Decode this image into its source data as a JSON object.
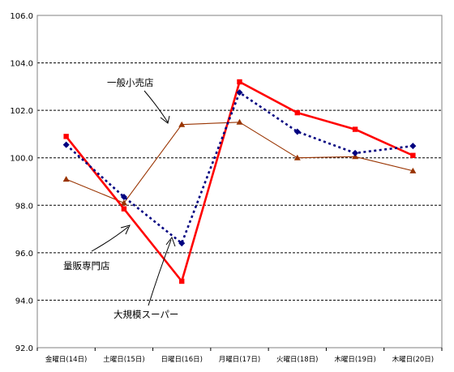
{
  "chart_data": {
    "type": "line",
    "title": "",
    "xlabel": "",
    "ylabel": "",
    "ylim": [
      92.0,
      106.0
    ],
    "yticks": [
      "92.0",
      "94.0",
      "96.0",
      "98.0",
      "100.0",
      "102.0",
      "104.0",
      "106.0"
    ],
    "grid": "horizontal-dashed",
    "categories": [
      "金曜日(14日)",
      "土曜日(15日)",
      "日曜日(16日)",
      "月曜日(17日)",
      "火曜日(18日)",
      "木曜日(19日)",
      "木曜日(20日)"
    ],
    "series": [
      {
        "name": "一般小売店",
        "values": [
          99.1,
          98.1,
          101.4,
          101.5,
          100.0,
          100.05,
          99.45
        ],
        "color": "#993300",
        "style": "solid-thin",
        "marker": "triangle"
      },
      {
        "name": "量販専門店",
        "values": [
          100.9,
          97.85,
          94.8,
          103.2,
          101.9,
          101.2,
          100.1
        ],
        "color": "#ff0000",
        "style": "solid-thick",
        "marker": "square"
      },
      {
        "name": "大規模スーパー",
        "values": [
          100.55,
          98.35,
          96.4,
          102.75,
          101.1,
          100.2,
          100.5
        ],
        "color": "#000080",
        "style": "dotted",
        "marker": "diamond"
      }
    ],
    "annotations": [
      {
        "text": "一般小売店",
        "series": "一般小売店"
      },
      {
        "text": "量販専門店",
        "series": "量販専門店"
      },
      {
        "text": "大規模スーパー",
        "series": "大規模スーパー"
      }
    ]
  }
}
